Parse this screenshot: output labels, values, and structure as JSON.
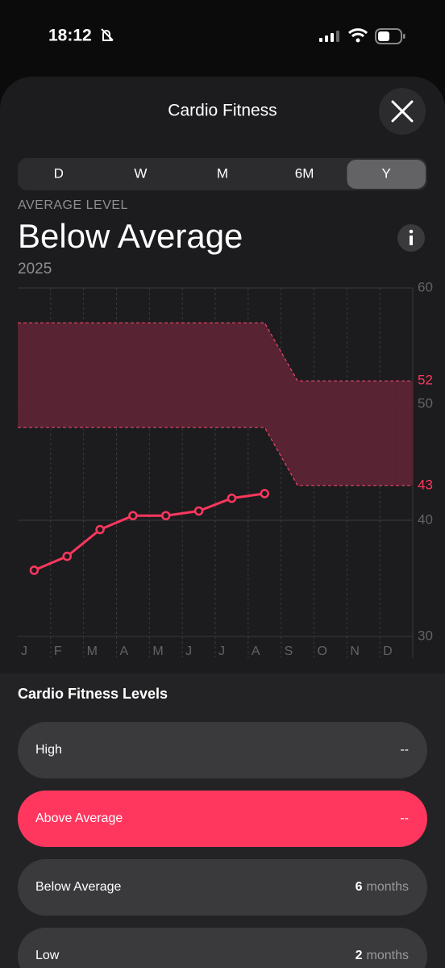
{
  "status_bar": {
    "time": "18:12"
  },
  "header": {
    "title": "Cardio Fitness"
  },
  "segments": {
    "options": [
      "D",
      "W",
      "M",
      "6M",
      "Y"
    ],
    "selected": 4
  },
  "summary": {
    "label": "AVERAGE LEVEL",
    "value": "Below Average",
    "period": "2025"
  },
  "chart_data": {
    "type": "line",
    "categories": [
      "J",
      "F",
      "M",
      "A",
      "M",
      "J",
      "J",
      "A",
      "S",
      "O",
      "N",
      "D"
    ],
    "series": [
      {
        "name": "Cardio Fitness",
        "color": "#ff375f",
        "values": [
          35.7,
          36.9,
          39.2,
          40.4,
          40.4,
          40.8,
          41.9,
          42.3,
          null,
          null,
          null,
          null
        ]
      }
    ],
    "band": {
      "color": "#5c2435",
      "edge_color": "#e8466a",
      "upper": [
        57,
        57,
        57,
        57,
        57,
        57,
        57,
        57,
        52,
        52,
        52,
        52
      ],
      "lower": [
        48,
        48,
        48,
        48,
        48,
        48,
        48,
        48,
        43,
        43,
        43,
        43
      ]
    },
    "ylim": [
      30,
      60
    ],
    "yticks": [
      30,
      40,
      50,
      60
    ],
    "grid": true
  },
  "levels": {
    "title": "Cardio Fitness Levels",
    "items": [
      {
        "name": "High",
        "value": "--"
      },
      {
        "name": "Above Average",
        "value": "--"
      },
      {
        "name": "Below Average",
        "count": "6",
        "unit": "months"
      },
      {
        "name": "Low",
        "count": "2",
        "unit": "months"
      }
    ]
  }
}
